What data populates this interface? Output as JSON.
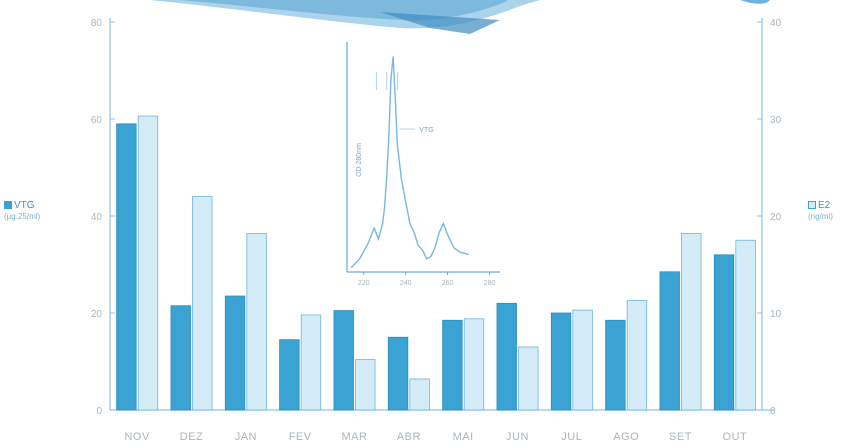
{
  "chart_data": [
    {
      "type": "bar",
      "categories": [
        "NOV",
        "DEZ",
        "JAN",
        "FEV",
        "MAR",
        "ABR",
        "MAI",
        "JUN",
        "JUL",
        "AGO",
        "SET",
        "OUT"
      ],
      "series": [
        {
          "name": "VTG",
          "axis": "left",
          "color": "#3aa3d4",
          "values": [
            59,
            21.5,
            23.5,
            14.5,
            20.5,
            15,
            18.5,
            22,
            20,
            18.5,
            28.5,
            32
          ]
        },
        {
          "name": "E2",
          "axis": "right",
          "color": "#d3ecf7",
          "values": [
            30.3,
            22,
            18.2,
            9.8,
            5.2,
            3.2,
            9.4,
            6.5,
            10.3,
            11.3,
            18.2,
            17.5
          ]
        }
      ],
      "y_left": {
        "label": "VTG",
        "unit": "(µg.25/ml)",
        "ylim": [
          0,
          80
        ],
        "ticks": [
          "80",
          "60",
          "40",
          "20",
          "0"
        ]
      },
      "y_right": {
        "label": "E2",
        "unit": "(ng/ml)",
        "ylim": [
          0,
          40
        ],
        "ticks": [
          "40",
          "30",
          "20",
          "10",
          "0"
        ]
      },
      "grid": false,
      "legend": "axis-labels"
    },
    {
      "type": "line",
      "role": "inset",
      "ylabel": "OD 280nm",
      "annotation": "VTG",
      "x_ticks": [
        "220",
        "240",
        "260",
        "280"
      ],
      "x": [
        214,
        218,
        222,
        225,
        227,
        229,
        230,
        231,
        232,
        233,
        234,
        235,
        236,
        238,
        240,
        242,
        244,
        246,
        248,
        250,
        252,
        254,
        256,
        258,
        260,
        263,
        266,
        270
      ],
      "y": [
        0.02,
        0.06,
        0.13,
        0.2,
        0.15,
        0.22,
        0.3,
        0.44,
        0.62,
        0.88,
        0.98,
        0.8,
        0.58,
        0.42,
        0.32,
        0.22,
        0.18,
        0.12,
        0.1,
        0.06,
        0.07,
        0.11,
        0.18,
        0.22,
        0.17,
        0.11,
        0.09,
        0.08
      ]
    }
  ]
}
